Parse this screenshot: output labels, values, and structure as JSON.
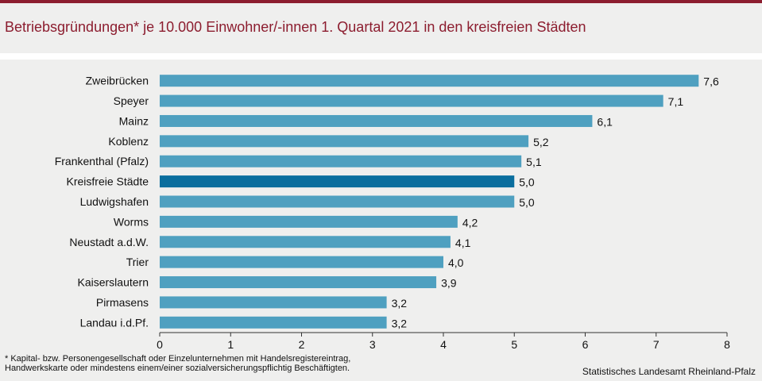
{
  "title": "Betriebsgründungen* je 10.000 Einwohner/-innen 1. Quartal 2021  in den kreisfreien Städten",
  "footnote": {
    "line1": "* Kapital- bzw. Personengesellschaft  oder Einzelunternehmen  mit  Handelsregistereintrag,",
    "line2": "Handwerkskarte  oder mindestens einem/einer  sozialversicherungspflichtig  Beschäftigten."
  },
  "source": "Statistisches Landesamt Rheinland-Pfalz",
  "colors": {
    "bar": "#4fa0c0",
    "highlight": "#0a6e9e",
    "title": "#8c1d2f"
  },
  "chart_data": {
    "type": "bar",
    "orientation": "horizontal",
    "categories": [
      "Zweibrücken",
      "Speyer",
      "Mainz",
      "Koblenz",
      "Frankenthal (Pfalz)",
      "Kreisfreie Städte",
      "Ludwigshafen",
      "Worms",
      "Neustadt a.d.W.",
      "Trier",
      "Kaiserslautern",
      "Pirmasens",
      "Landau i.d.Pf."
    ],
    "values": [
      7.6,
      7.1,
      6.1,
      5.2,
      5.1,
      5.0,
      5.0,
      4.2,
      4.1,
      4.0,
      3.9,
      3.2,
      3.2
    ],
    "labels": [
      "7,6",
      "7,1",
      "6,1",
      "5,2",
      "5,1",
      "5,0",
      "5,0",
      "4,2",
      "4,1",
      "4,0",
      "3,9",
      "3,2",
      "3,2"
    ],
    "highlight": "Kreisfreie Städte",
    "xlim": [
      0,
      8
    ],
    "xticks": [
      "0",
      "1",
      "2",
      "3",
      "4",
      "5",
      "6",
      "7",
      "8"
    ],
    "xlabel": "",
    "ylabel": ""
  }
}
